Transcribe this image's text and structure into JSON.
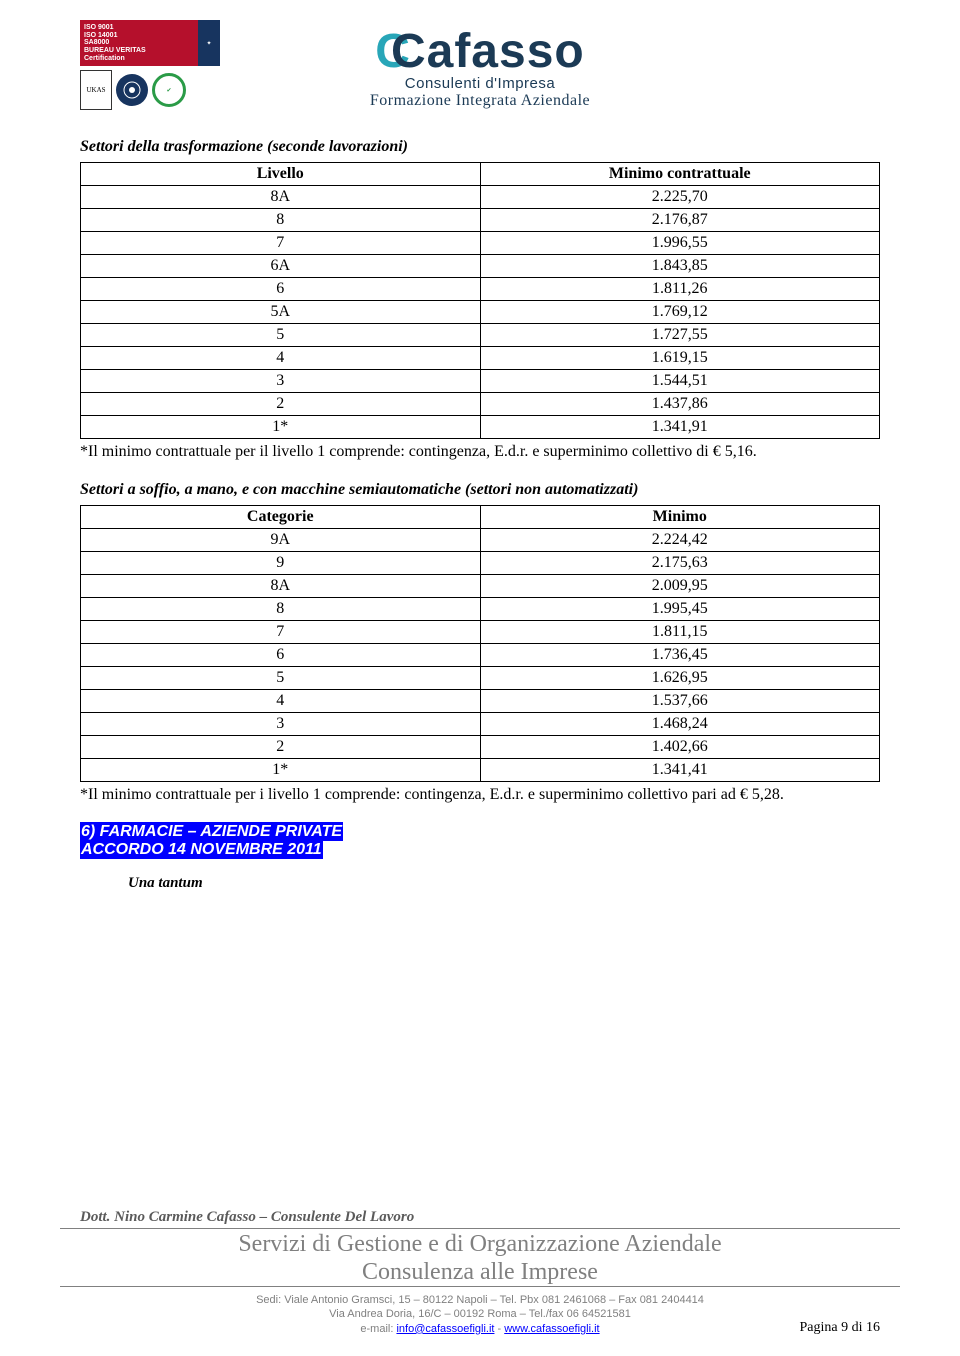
{
  "header": {
    "cert": {
      "lines": "ISO 9001\nISO 14001\nSA8000\nBUREAU VERITAS\nCertification",
      "ukas": "UKAS"
    },
    "brand": "Cafasso",
    "subtitle1": "Consulenti d'Impresa",
    "subtitle2": "Formazione Integrata Aziendale"
  },
  "table1": {
    "title": "Settori della trasformazione (seconde lavorazioni)",
    "col1": "Livello",
    "col2": "Minimo contrattuale",
    "rows": [
      {
        "l": "8A",
        "v": "2.225,70"
      },
      {
        "l": "8",
        "v": "2.176,87"
      },
      {
        "l": "7",
        "v": "1.996,55"
      },
      {
        "l": "6A",
        "v": "1.843,85"
      },
      {
        "l": "6",
        "v": "1.811,26"
      },
      {
        "l": "5A",
        "v": "1.769,12"
      },
      {
        "l": "5",
        "v": "1.727,55"
      },
      {
        "l": "4",
        "v": "1.619,15"
      },
      {
        "l": "3",
        "v": "1.544,51"
      },
      {
        "l": "2",
        "v": "1.437,86"
      },
      {
        "l": "1*",
        "v": "1.341,91"
      }
    ],
    "note": "*Il minimo contrattuale per il livello 1 comprende: contingenza, E.d.r. e superminimo collettivo di € 5,16."
  },
  "table2": {
    "title": "Settori a soffio, a mano, e con macchine semiautomatiche (settori non automatizzati)",
    "col1": "Categorie",
    "col2": "Minimo",
    "rows": [
      {
        "l": "9A",
        "v": "2.224,42"
      },
      {
        "l": "9",
        "v": "2.175,63"
      },
      {
        "l": "8A",
        "v": "2.009,95"
      },
      {
        "l": "8",
        "v": "1.995,45"
      },
      {
        "l": "7",
        "v": "1.811,15"
      },
      {
        "l": "6",
        "v": "1.736,45"
      },
      {
        "l": "5",
        "v": "1.626,95"
      },
      {
        "l": "4",
        "v": "1.537,66"
      },
      {
        "l": "3",
        "v": "1.468,24"
      },
      {
        "l": "2",
        "v": "1.402,66"
      },
      {
        "l": "1*",
        "v": "1.341,41"
      }
    ],
    "note": "*Il minimo contrattuale per i livello 1 comprende: contingenza, E.d.r. e superminimo collettivo pari ad € 5,28."
  },
  "highlight": {
    "line1": "6)     FARMACIE – AZIENDE PRIVATE",
    "line2": "ACCORDO 14 NOVEMBRE 2011"
  },
  "una_tantum": "Una tantum",
  "footer": {
    "author": "Dott. Nino Carmine Cafasso – Consulente Del Lavoro",
    "cursive1": "Servizi di Gestione e di Organizzazione Aziendale",
    "cursive2": "Consulenza alle Imprese",
    "addr1": "Sedi: Viale Antonio Gramsci, 15 – 80122 Napoli – Tel. Pbx 081 2461068 – Fax 081 2404414",
    "addr2": "Via Andrea Doria, 16/C – 00192 Roma – Tel./fax 06 64521581",
    "email_label": "e-mail: ",
    "email": "info@cafassoefigli.it",
    "sep": " - ",
    "web": "www.cafassoefigli.it",
    "page": "Pagina 9 di 16"
  }
}
